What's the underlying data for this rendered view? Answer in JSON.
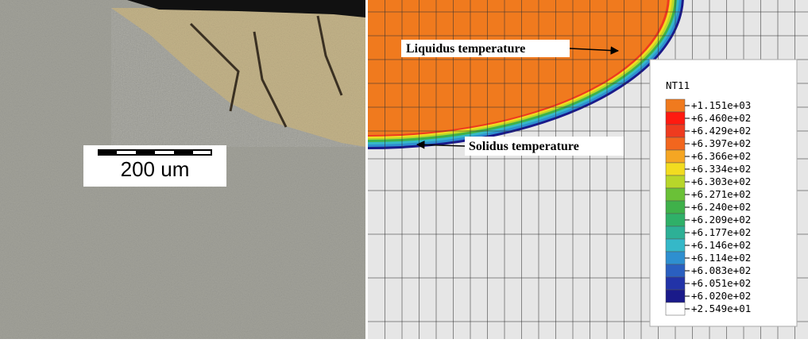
{
  "scale_bar": {
    "label": "200 um"
  },
  "annotations": [
    {
      "text": "Liquidus temperature"
    },
    {
      "text": "Solidus temperature"
    }
  ],
  "legend": {
    "title": "NT11",
    "entries": [
      {
        "label": "+1.151e+03",
        "color": "#f07a1e"
      },
      {
        "label": "+6.460e+02",
        "color": "#ff1a10"
      },
      {
        "label": "+6.429e+02",
        "color": "#ee3b1f"
      },
      {
        "label": "+6.397e+02",
        "color": "#f2661e"
      },
      {
        "label": "+6.366e+02",
        "color": "#f5a623"
      },
      {
        "label": "+6.334e+02",
        "color": "#f2dc20"
      },
      {
        "label": "+6.303e+02",
        "color": "#b8d62a"
      },
      {
        "label": "+6.271e+02",
        "color": "#6ac137"
      },
      {
        "label": "+6.240e+02",
        "color": "#3fb14a"
      },
      {
        "label": "+6.209e+02",
        "color": "#2fb068"
      },
      {
        "label": "+6.177e+02",
        "color": "#2db096"
      },
      {
        "label": "+6.146e+02",
        "color": "#35b8c8"
      },
      {
        "label": "+6.114e+02",
        "color": "#2e8fd0"
      },
      {
        "label": "+6.083e+02",
        "color": "#2a5fc0"
      },
      {
        "label": "+6.051e+02",
        "color": "#2233a8"
      },
      {
        "label": "+6.020e+02",
        "color": "#1a1a8a"
      },
      {
        "label": "+2.549e+01",
        "color": "#ffffff"
      }
    ]
  }
}
